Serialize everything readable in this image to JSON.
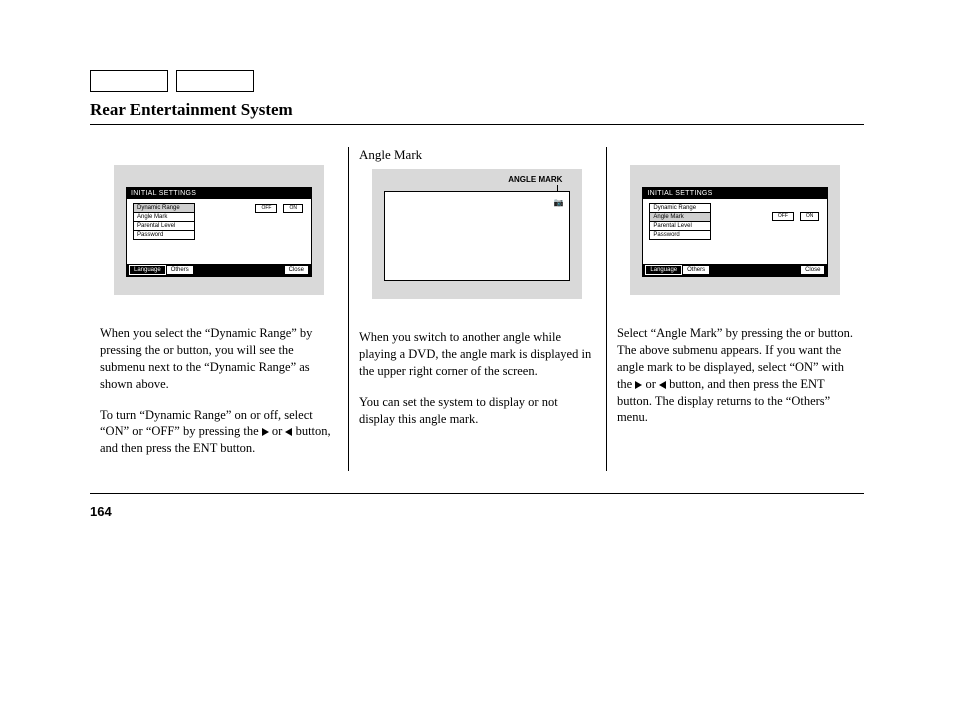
{
  "section_title": "Rear Entertainment System",
  "page_number": "164",
  "screen": {
    "titlebar": "INITIAL SETTINGS",
    "items": [
      "Dynamic Range",
      "Angle Mark",
      "Parental Level",
      "Password"
    ],
    "toggle_off": "OFF",
    "toggle_on": "ON",
    "tab_language": "Language",
    "tab_others": "Others",
    "tab_close": "Close"
  },
  "col1": {
    "p1_a": "When you select the “Dynamic Range” by pressing the ",
    "p1_b": " or ",
    "p1_c": " button, you will see the submenu next to the “Dynamic Range” as shown above.",
    "p2_a": "To turn “Dynamic Range” on or off, select “ON” or “OFF” by pressing the ",
    "p2_b": " or ",
    "p2_c": " button, and then press the ENT button."
  },
  "col2": {
    "heading": "Angle Mark",
    "label": "ANGLE MARK",
    "p1": "When you switch to another angle while playing a DVD, the angle mark is displayed in the upper right corner of the screen.",
    "p2": "You can set the system to display or not display this angle mark."
  },
  "col3": {
    "p1_a": "Select “Angle Mark” by pressing the ",
    "p1_b": " or ",
    "p1_c": " button. The above submenu appears. If you want the angle mark to be displayed, select “ON” with the ",
    "p1_d": " or ",
    "p1_e": " button, and then press the ENT button. The display returns to the “Others” menu."
  }
}
